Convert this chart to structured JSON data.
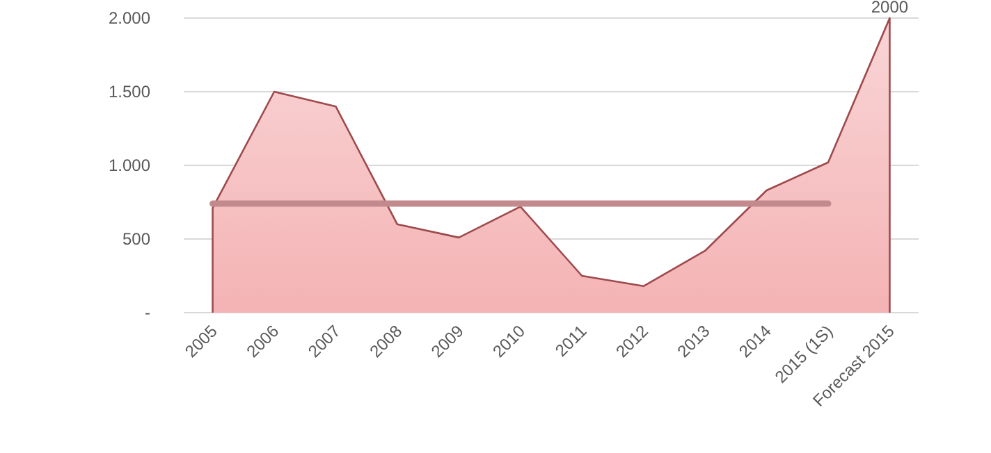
{
  "chart_data": {
    "type": "area",
    "categories": [
      "2005",
      "2006",
      "2007",
      "2008",
      "2009",
      "2010",
      "2011",
      "2012",
      "2013",
      "2014",
      "2015 (1S)",
      "Forecast 2015"
    ],
    "series": [
      {
        "color": "#f4b3b4",
        "values": [
          710,
          1500,
          1400,
          600,
          510,
          720,
          250,
          180,
          420,
          830,
          1020,
          2000
        ],
        "value_labels": [
          null,
          null,
          null,
          null,
          null,
          null,
          null,
          null,
          null,
          null,
          null,
          "2000"
        ]
      },
      {
        "type": "line",
        "color": "#c38a8d",
        "values": [
          740,
          740,
          740,
          740,
          740,
          740,
          740,
          740,
          740,
          740,
          740,
          null
        ]
      }
    ],
    "ylim": [
      0,
      2000
    ],
    "yticks": [
      {
        "value": 0,
        "label": "-"
      },
      {
        "value": 500,
        "label": "500"
      },
      {
        "value": 1000,
        "label": "1.000"
      },
      {
        "value": 1500,
        "label": "1.500"
      },
      {
        "value": 2000,
        "label": "2.000"
      }
    ],
    "grid": "y"
  }
}
